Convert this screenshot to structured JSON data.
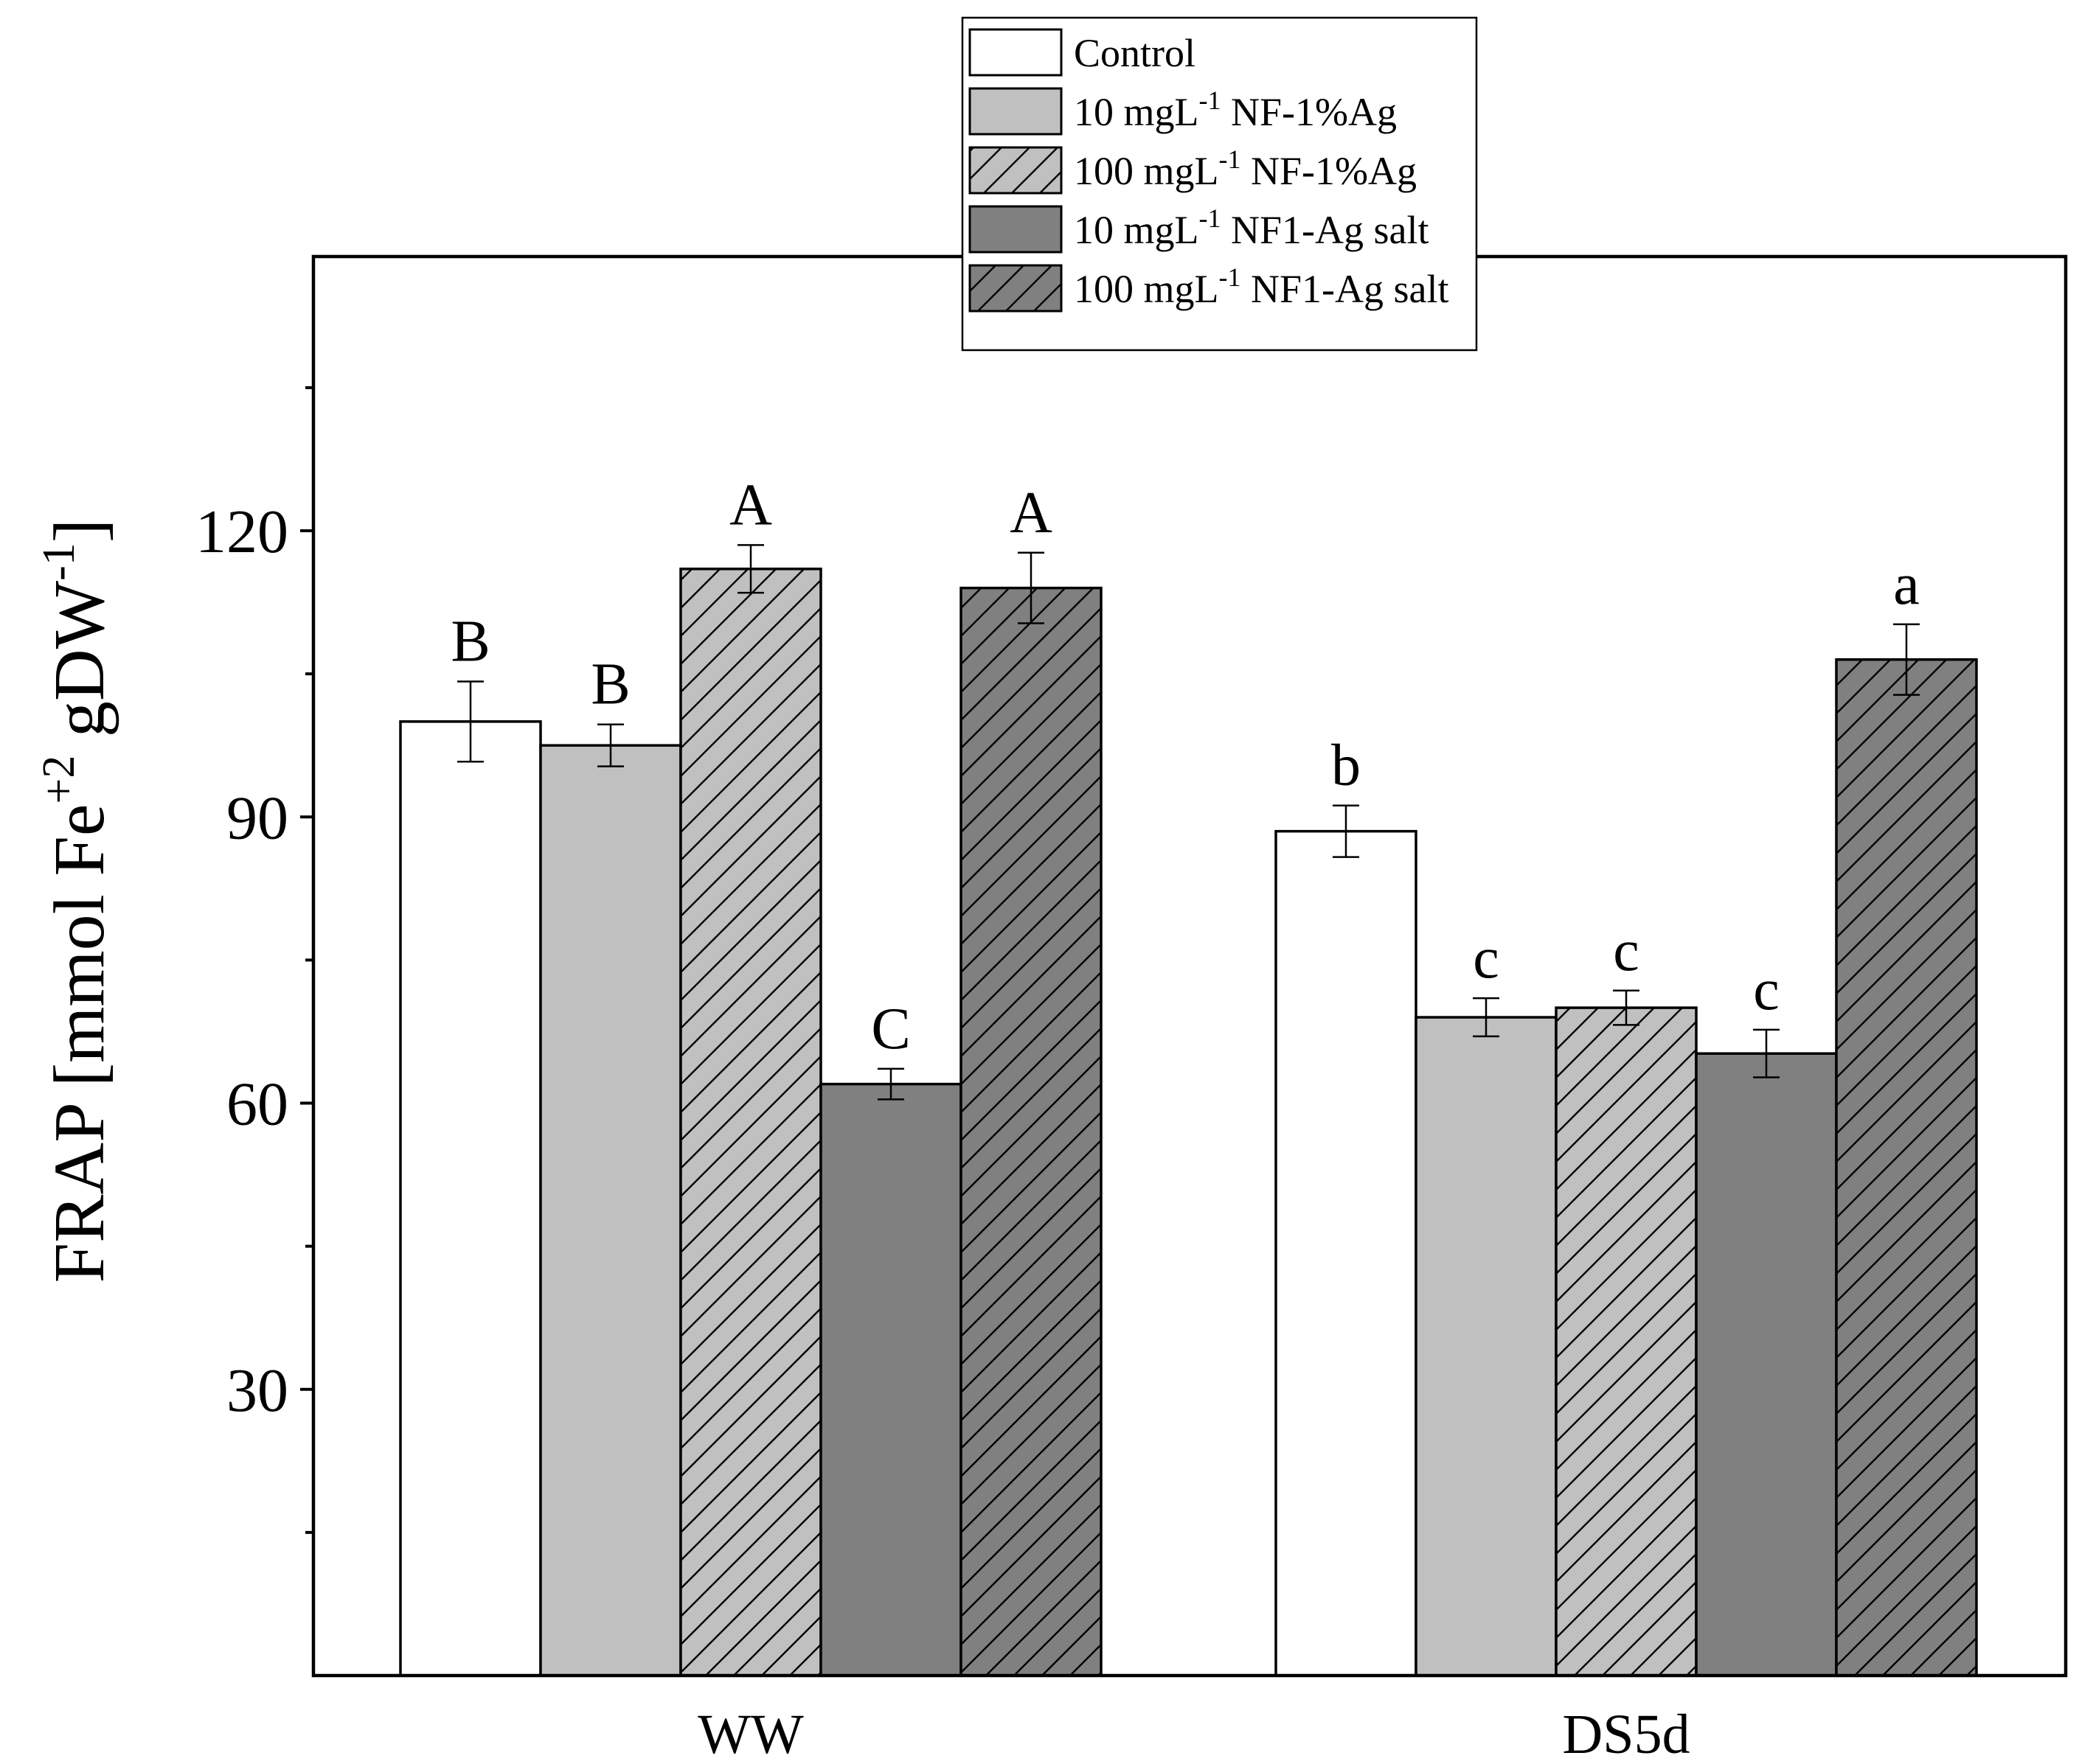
{
  "chart_data": {
    "type": "bar",
    "categories": [
      "WW",
      "DS5d"
    ],
    "ylabel": {
      "main": "FRAP [mmol Fe",
      "sup1": "+2",
      "mid": " gDW",
      "sup2": "-1",
      "end": "]"
    },
    "xlabel": "",
    "ylim": [
      0,
      150
    ],
    "yticks": [
      30,
      60,
      90,
      120
    ],
    "minor_tick_step": 15,
    "grid": false,
    "legend_position": "top-center",
    "series": [
      {
        "name": "Control",
        "legend": {
          "a": "Control",
          "sup": "",
          "b": ""
        },
        "fill": "#ffffff",
        "hatch": false,
        "values": [
          100,
          88.5
        ],
        "errors": [
          4.2,
          2.7
        ],
        "letters": [
          "B",
          "b"
        ]
      },
      {
        "name": "10 mgL-1 NF-1%Ag",
        "legend": {
          "a": "10 mgL",
          "sup": "-1",
          "b": " NF-1%Ag"
        },
        "fill": "#c0c0c0",
        "hatch": false,
        "values": [
          97.5,
          69
        ],
        "errors": [
          2.2,
          2.0
        ],
        "letters": [
          "B",
          "c"
        ]
      },
      {
        "name": "100 mgL-1 NF-1%Ag",
        "legend": {
          "a": "100 mgL",
          "sup": "-1",
          "b": " NF-1%Ag"
        },
        "fill": "#c0c0c0",
        "hatch": true,
        "values": [
          116,
          70
        ],
        "errors": [
          2.5,
          1.8
        ],
        "letters": [
          "A",
          "c"
        ]
      },
      {
        "name": "10 mgL-1 NF1-Ag salt",
        "legend": {
          "a": "10 mgL",
          "sup": "-1",
          "b": " NF1-Ag salt"
        },
        "fill": "#808080",
        "hatch": false,
        "values": [
          62,
          65.2
        ],
        "errors": [
          1.6,
          2.5
        ],
        "letters": [
          "C",
          "c"
        ]
      },
      {
        "name": "100 mgL-1 NF1-Ag salt",
        "legend": {
          "a": "100 mgL",
          "sup": "-1",
          "b": " NF1-Ag salt"
        },
        "fill": "#808080",
        "hatch": true,
        "values": [
          114,
          106.5
        ],
        "errors": [
          3.7,
          3.7
        ],
        "letters": [
          "A",
          "a"
        ]
      }
    ]
  }
}
